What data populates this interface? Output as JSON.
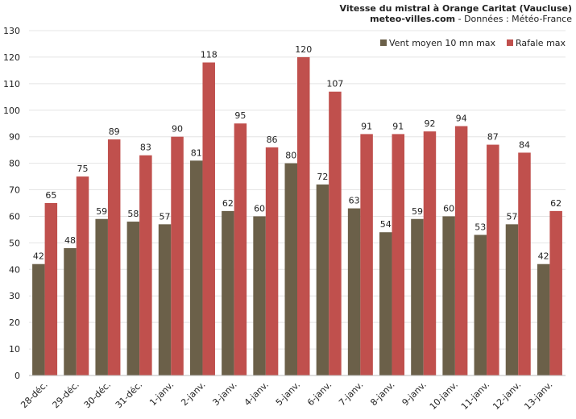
{
  "header": {
    "title": "Vitesse du mistral à Orange Caritat (Vaucluse)",
    "site": "meteo-villes.com",
    "source": " - Données : Météo-France"
  },
  "chart_data": {
    "type": "bar",
    "categories": [
      "28-déc.",
      "29-déc.",
      "30-déc.",
      "31-déc.",
      "1-janv.",
      "2-janv.",
      "3-janv.",
      "4-janv.",
      "5-janv.",
      "6-janv.",
      "7-janv.",
      "8-janv.",
      "9-janv.",
      "10-janv.",
      "11-janv.",
      "12-janv.",
      "13-janv."
    ],
    "series": [
      {
        "name": "Vent moyen 10 mn max",
        "color": "#6b6049",
        "values": [
          42,
          48,
          59,
          58,
          57,
          81,
          62,
          60,
          80,
          72,
          63,
          54,
          59,
          60,
          53,
          57,
          42
        ]
      },
      {
        "name": "Rafale max",
        "color": "#c0504d",
        "values": [
          65,
          75,
          89,
          83,
          90,
          118,
          95,
          86,
          120,
          107,
          91,
          91,
          92,
          94,
          87,
          84,
          62
        ]
      }
    ],
    "ylim": [
      0,
      130
    ],
    "yticks": [
      0,
      10,
      20,
      30,
      40,
      50,
      60,
      70,
      80,
      90,
      100,
      110,
      120,
      130
    ],
    "grid": true,
    "legend": "top-right"
  }
}
